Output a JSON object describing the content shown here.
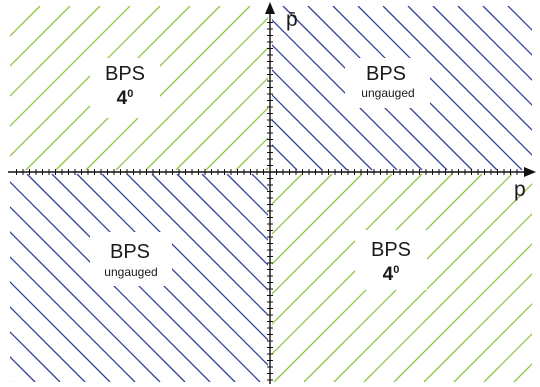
{
  "axes": {
    "x_label": "p",
    "y_label": "p̄"
  },
  "regions": {
    "top_left": {
      "title": "BPS",
      "degree": "4",
      "degree_sup": "0",
      "hatch": "green"
    },
    "top_right": {
      "title": "BPS",
      "subtitle": "ungauged",
      "hatch": "blue"
    },
    "bottom_left": {
      "title": "BPS",
      "subtitle": "ungauged",
      "hatch": "blue"
    },
    "bottom_right": {
      "title": "BPS",
      "degree": "4",
      "degree_sup": "0",
      "hatch": "green"
    }
  },
  "colors": {
    "green": "#8cc63f",
    "blue": "#2e3f98",
    "axis": "#111111"
  }
}
